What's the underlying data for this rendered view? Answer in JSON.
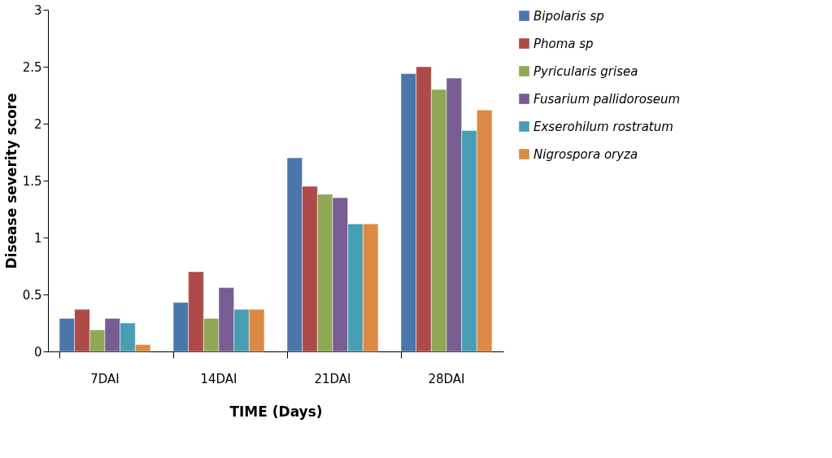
{
  "chart_data": {
    "type": "bar",
    "xlabel": "TIME (Days)",
    "ylabel": "Disease severity score",
    "categories": [
      "7DAI",
      "14DAI",
      "21DAI",
      "28DAI"
    ],
    "series": [
      {
        "name": "Bipolaris sp",
        "color": "#4a76ac",
        "values": [
          0.29,
          0.43,
          1.7,
          2.44
        ]
      },
      {
        "name": "Phoma sp",
        "color": "#ae4a47",
        "values": [
          0.37,
          0.7,
          1.45,
          2.5
        ]
      },
      {
        "name": "Pyricularis grisea",
        "color": "#8ea854",
        "values": [
          0.19,
          0.29,
          1.38,
          2.3
        ]
      },
      {
        "name": "Fusarium pallidoroseum",
        "color": "#775d94",
        "values": [
          0.29,
          0.56,
          1.35,
          2.4
        ]
      },
      {
        "name": "Exserohilum rostratum",
        "color": "#479eb4",
        "values": [
          0.25,
          0.37,
          1.12,
          1.94
        ]
      },
      {
        "name": "Nigrospora oryza",
        "color": "#dc8a43",
        "values": [
          0.06,
          0.37,
          1.12,
          2.12
        ]
      }
    ],
    "ylim": [
      0,
      3
    ],
    "yticks": [
      0,
      0.5,
      1,
      1.5,
      2,
      2.5,
      3
    ],
    "grid": false,
    "legend": "right"
  }
}
